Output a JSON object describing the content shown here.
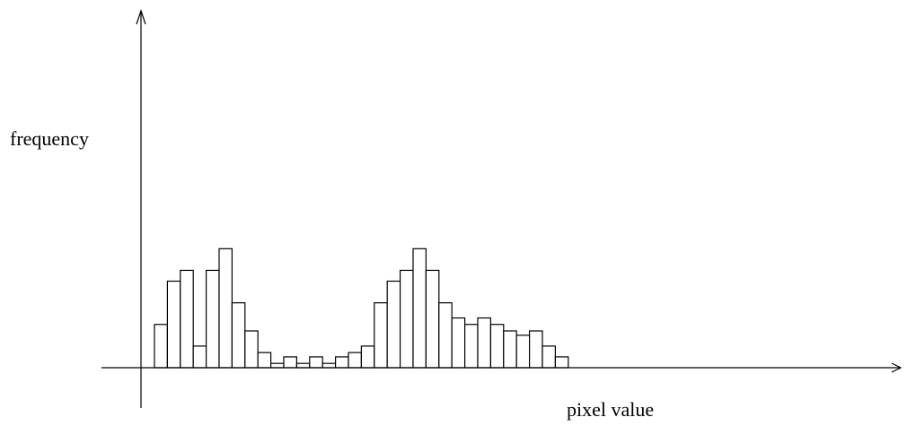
{
  "chart_data": {
    "type": "bar",
    "title": "",
    "xlabel": "pixel value",
    "ylabel": "frequency",
    "grid": false,
    "legend": "none",
    "ylim": [
      0,
      16
    ],
    "values": [
      2,
      4,
      4.5,
      1,
      4.5,
      5.5,
      3,
      1.7,
      0.7,
      0.2,
      0.5,
      0.2,
      0.5,
      0.2,
      0.5,
      0.7,
      1,
      3,
      4,
      4.5,
      5.5,
      4.5,
      3,
      2.3,
      2,
      2.3,
      2,
      1.7,
      1.5,
      1.7,
      1,
      0.5
    ],
    "colors": {
      "bar_fill": "#ffffff",
      "bar_stroke": "#000000",
      "axis": "#000000"
    }
  }
}
